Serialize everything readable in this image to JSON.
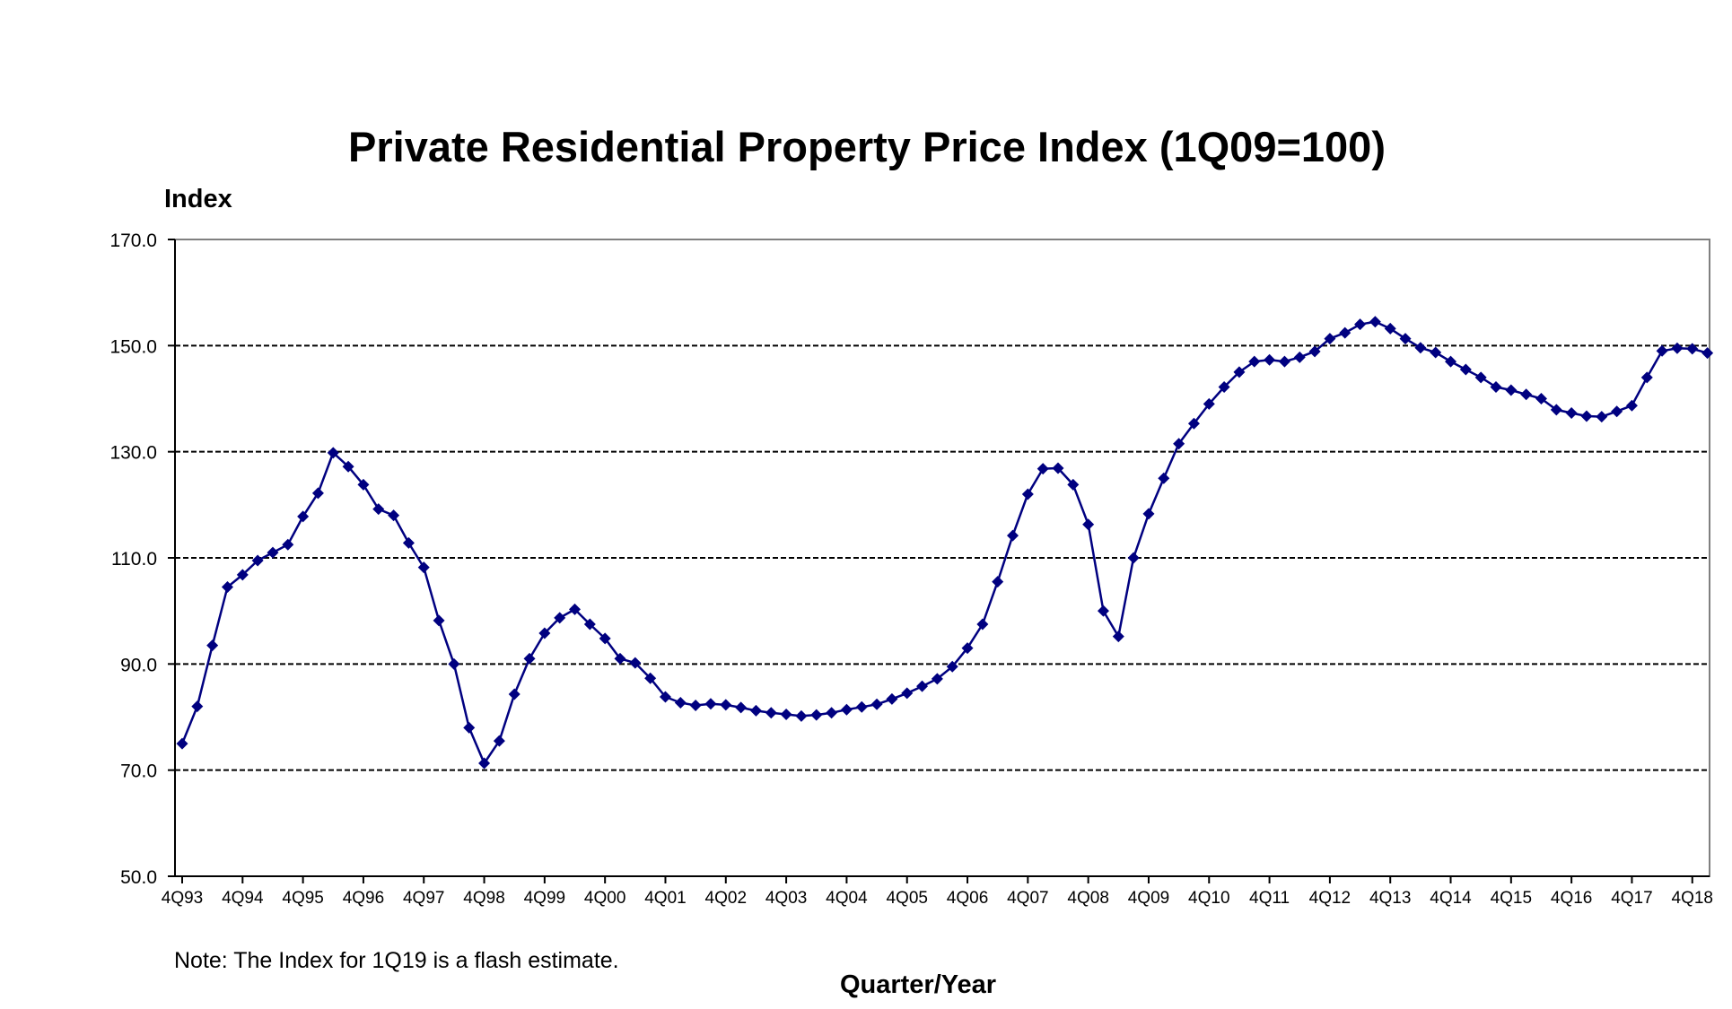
{
  "chart_data": {
    "type": "line",
    "title": "Private Residential Property Price Index (1Q09=100)",
    "ylabel": "Index",
    "xlabel": "Quarter/Year",
    "note": "Note: The Index for 1Q19 is a flash estimate.",
    "ylim": [
      50,
      170
    ],
    "yticks": [
      "50.0",
      "70.0",
      "90.0",
      "110.0",
      "130.0",
      "150.0",
      "170.0"
    ],
    "ytick_values": [
      50,
      70,
      90,
      110,
      130,
      150,
      170
    ],
    "dashed_gridlines": [
      70,
      90,
      110,
      130,
      150
    ],
    "xtick_labels": [
      "4Q93",
      "4Q94",
      "4Q95",
      "4Q96",
      "4Q97",
      "4Q98",
      "4Q99",
      "4Q00",
      "4Q01",
      "4Q02",
      "4Q03",
      "4Q04",
      "4Q05",
      "4Q06",
      "4Q07",
      "4Q08",
      "4Q09",
      "4Q10",
      "4Q11",
      "4Q12",
      "4Q13",
      "4Q14",
      "4Q15",
      "4Q16",
      "4Q17",
      "4Q18"
    ],
    "series_color": "#000080",
    "series": [
      {
        "name": "Private Residential Property Price Index",
        "values": [
          75.0,
          82.0,
          93.5,
          104.5,
          106.8,
          109.5,
          111.0,
          112.5,
          117.8,
          122.2,
          129.8,
          127.2,
          123.8,
          119.2,
          118.0,
          112.8,
          108.2,
          98.2,
          90.0,
          78.0,
          71.3,
          75.5,
          84.3,
          91.0,
          95.8,
          98.7,
          100.3,
          97.5,
          94.8,
          91.0,
          90.2,
          87.3,
          83.8,
          82.7,
          82.2,
          82.5,
          82.3,
          81.8,
          81.2,
          80.8,
          80.5,
          80.2,
          80.4,
          80.8,
          81.4,
          81.9,
          82.4,
          83.4,
          84.5,
          85.8,
          87.2,
          89.5,
          93.0,
          97.5,
          105.5,
          114.2,
          122.0,
          126.8,
          126.9,
          123.8,
          116.3,
          100.0,
          95.2,
          110.0,
          118.3,
          125.0,
          131.5,
          135.3,
          139.0,
          142.2,
          145.0,
          147.0,
          147.3,
          147.0,
          147.8,
          148.9,
          151.3,
          152.4,
          154.0,
          154.5,
          153.2,
          151.3,
          149.6,
          148.7,
          147.0,
          145.5,
          144.0,
          142.2,
          141.6,
          140.8,
          140.0,
          137.9,
          137.3,
          136.7,
          136.6,
          137.6,
          138.7,
          144.0,
          149.0,
          149.5,
          149.4,
          148.6
        ]
      }
    ]
  }
}
